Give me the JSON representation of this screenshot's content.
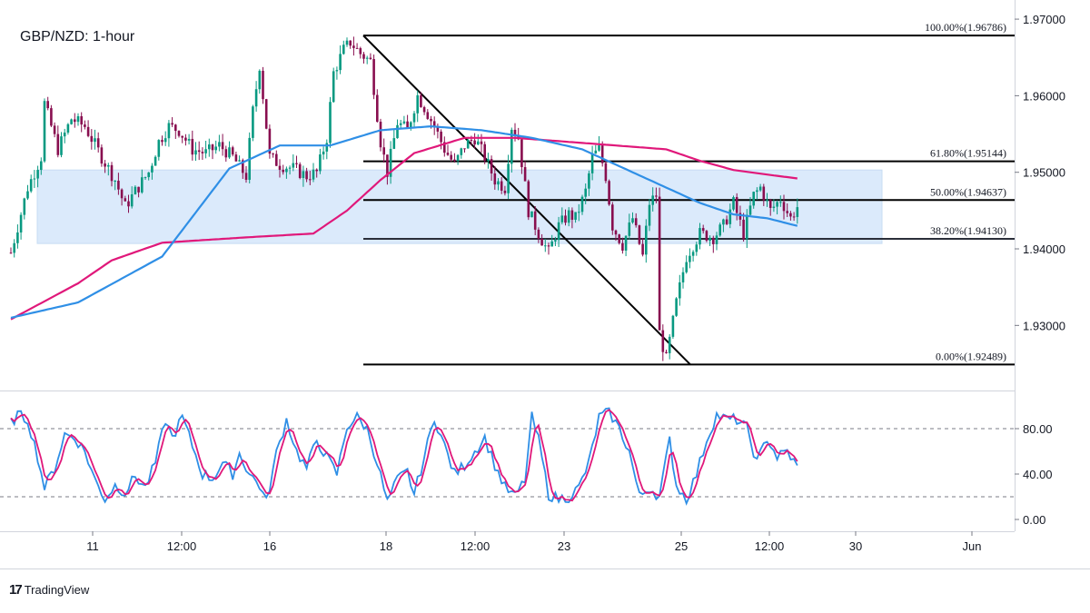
{
  "chart_data": {
    "type": "candlestick",
    "title": "GBP/NZD: 1-hour",
    "price_axis": {
      "range": [
        1.9215,
        1.9725
      ],
      "ticks": [
        {
          "value": 1.97,
          "label": "1.97000"
        },
        {
          "value": 1.96,
          "label": "1.96000"
        },
        {
          "value": 1.95,
          "label": "1.95000"
        },
        {
          "value": 1.94,
          "label": "1.94000"
        },
        {
          "value": 1.93,
          "label": "1.93000"
        }
      ]
    },
    "time_axis": {
      "labels": [
        "11",
        "12:00",
        "16",
        "18",
        "12:00",
        "23",
        "25",
        "12:00",
        "30",
        "Jun"
      ]
    },
    "fibonacci": [
      {
        "label": "100.00%(1.96786)",
        "price": 1.96786
      },
      {
        "label": "61.80%(1.95144)",
        "price": 1.95144
      },
      {
        "label": "50.00%(1.94637)",
        "price": 1.94637
      },
      {
        "label": "38.20%(1.94130)",
        "price": 1.9413
      },
      {
        "label": "0.00%(1.92489)",
        "price": 1.92489
      }
    ],
    "zone": {
      "price_top": 1.9503,
      "price_bottom": 1.9407
    },
    "colors": {
      "up": "#089981",
      "down": "#880e4f",
      "zone": "#dbeafb",
      "zone_border": "#c7dcf3",
      "ma_fast": "#2f8fe6",
      "ma_slow": "#e0187a",
      "stoch_k": "#2f8fe6",
      "stoch_d": "#e0187a"
    },
    "stochastic": {
      "range": [
        0,
        100
      ],
      "levels": [
        80,
        20
      ],
      "ticks": [
        {
          "value": 80,
          "label": "80.00"
        },
        {
          "value": 40,
          "label": "40.00"
        },
        {
          "value": 0,
          "label": "0.00"
        }
      ]
    },
    "anchors": [
      [
        0,
        1.9395
      ],
      [
        5,
        1.948
      ],
      [
        9,
        1.952
      ],
      [
        10,
        1.959
      ],
      [
        14,
        1.953
      ],
      [
        18,
        1.957
      ],
      [
        22,
        1.956
      ],
      [
        27,
        1.952
      ],
      [
        31,
        1.949
      ],
      [
        34,
        1.9455
      ],
      [
        37,
        1.9475
      ],
      [
        41,
        1.95
      ],
      [
        44,
        1.954
      ],
      [
        47,
        1.956
      ],
      [
        50,
        1.9555
      ],
      [
        54,
        1.953
      ],
      [
        58,
        1.9525
      ],
      [
        62,
        1.9535
      ],
      [
        66,
        1.952
      ],
      [
        70,
        1.9495
      ],
      [
        72,
        1.958
      ],
      [
        74,
        1.964
      ],
      [
        77,
        1.952
      ],
      [
        80,
        1.951
      ],
      [
        84,
        1.9505
      ],
      [
        88,
        1.9495
      ],
      [
        91,
        1.95
      ],
      [
        94,
        1.9545
      ],
      [
        96,
        1.963
      ],
      [
        99,
        1.966
      ],
      [
        101,
        1.967
      ],
      [
        104,
        1.9655
      ],
      [
        107,
        1.9645
      ],
      [
        110,
        1.954
      ],
      [
        112,
        1.95
      ],
      [
        115,
        1.9565
      ],
      [
        118,
        1.9555
      ],
      [
        121,
        1.96
      ],
      [
        123,
        1.9585
      ],
      [
        126,
        1.956
      ],
      [
        129,
        1.953
      ],
      [
        132,
        1.951
      ],
      [
        135,
        1.9535
      ],
      [
        138,
        1.9545
      ],
      [
        141,
        1.952
      ],
      [
        144,
        1.949
      ],
      [
        147,
        1.948
      ],
      [
        149,
        1.956
      ],
      [
        151,
        1.9545
      ],
      [
        154,
        1.945
      ],
      [
        157,
        1.942
      ],
      [
        160,
        1.9395
      ],
      [
        163,
        1.943
      ],
      [
        166,
        1.9445
      ],
      [
        168,
        1.944
      ],
      [
        171,
        1.9475
      ],
      [
        173,
        1.952
      ],
      [
        175,
        1.953
      ],
      [
        177,
        1.9495
      ],
      [
        179,
        1.943
      ],
      [
        182,
        1.9405
      ],
      [
        185,
        1.944
      ],
      [
        188,
        1.939
      ],
      [
        190,
        1.946
      ],
      [
        192,
        1.947
      ],
      [
        193,
        1.929
      ],
      [
        195,
        1.9255
      ],
      [
        198,
        1.933
      ],
      [
        201,
        1.939
      ],
      [
        205,
        1.942
      ],
      [
        209,
        1.9415
      ],
      [
        212,
        1.943
      ],
      [
        215,
        1.946
      ],
      [
        218,
        1.942
      ],
      [
        221,
        1.947
      ],
      [
        223,
        1.948
      ],
      [
        226,
        1.945
      ],
      [
        229,
        1.9465
      ],
      [
        232,
        1.944
      ],
      [
        234,
        1.9455
      ]
    ],
    "stoch_anchors": [
      [
        0,
        85
      ],
      [
        2,
        92
      ],
      [
        5,
        88
      ],
      [
        8,
        55
      ],
      [
        10,
        28
      ],
      [
        13,
        45
      ],
      [
        16,
        75
      ],
      [
        19,
        72
      ],
      [
        22,
        60
      ],
      [
        25,
        35
      ],
      [
        28,
        18
      ],
      [
        31,
        30
      ],
      [
        34,
        24
      ],
      [
        37,
        38
      ],
      [
        40,
        28
      ],
      [
        43,
        50
      ],
      [
        46,
        88
      ],
      [
        48,
        72
      ],
      [
        51,
        90
      ],
      [
        54,
        65
      ],
      [
        57,
        40
      ],
      [
        60,
        36
      ],
      [
        63,
        50
      ],
      [
        66,
        40
      ],
      [
        68,
        58
      ],
      [
        71,
        40
      ],
      [
        74,
        30
      ],
      [
        76,
        15
      ],
      [
        79,
        58
      ],
      [
        82,
        88
      ],
      [
        85,
        60
      ],
      [
        88,
        45
      ],
      [
        91,
        70
      ],
      [
        94,
        55
      ],
      [
        97,
        40
      ],
      [
        100,
        82
      ],
      [
        103,
        90
      ],
      [
        106,
        80
      ],
      [
        109,
        50
      ],
      [
        112,
        15
      ],
      [
        115,
        35
      ],
      [
        118,
        42
      ],
      [
        120,
        22
      ],
      [
        123,
        55
      ],
      [
        126,
        90
      ],
      [
        129,
        65
      ],
      [
        132,
        40
      ],
      [
        135,
        48
      ],
      [
        138,
        60
      ],
      [
        141,
        72
      ],
      [
        144,
        48
      ],
      [
        147,
        28
      ],
      [
        150,
        20
      ],
      [
        153,
        35
      ],
      [
        155,
        90
      ],
      [
        157,
        70
      ],
      [
        160,
        22
      ],
      [
        163,
        18
      ],
      [
        166,
        20
      ],
      [
        169,
        28
      ],
      [
        172,
        50
      ],
      [
        175,
        90
      ],
      [
        178,
        95
      ],
      [
        181,
        80
      ],
      [
        184,
        60
      ],
      [
        187,
        20
      ],
      [
        190,
        28
      ],
      [
        193,
        20
      ],
      [
        196,
        70
      ],
      [
        198,
        30
      ],
      [
        201,
        18
      ],
      [
        204,
        40
      ],
      [
        207,
        70
      ],
      [
        210,
        92
      ],
      [
        213,
        88
      ],
      [
        216,
        88
      ],
      [
        219,
        80
      ],
      [
        222,
        50
      ],
      [
        225,
        72
      ],
      [
        228,
        55
      ],
      [
        231,
        60
      ],
      [
        234,
        46
      ]
    ]
  }
}
